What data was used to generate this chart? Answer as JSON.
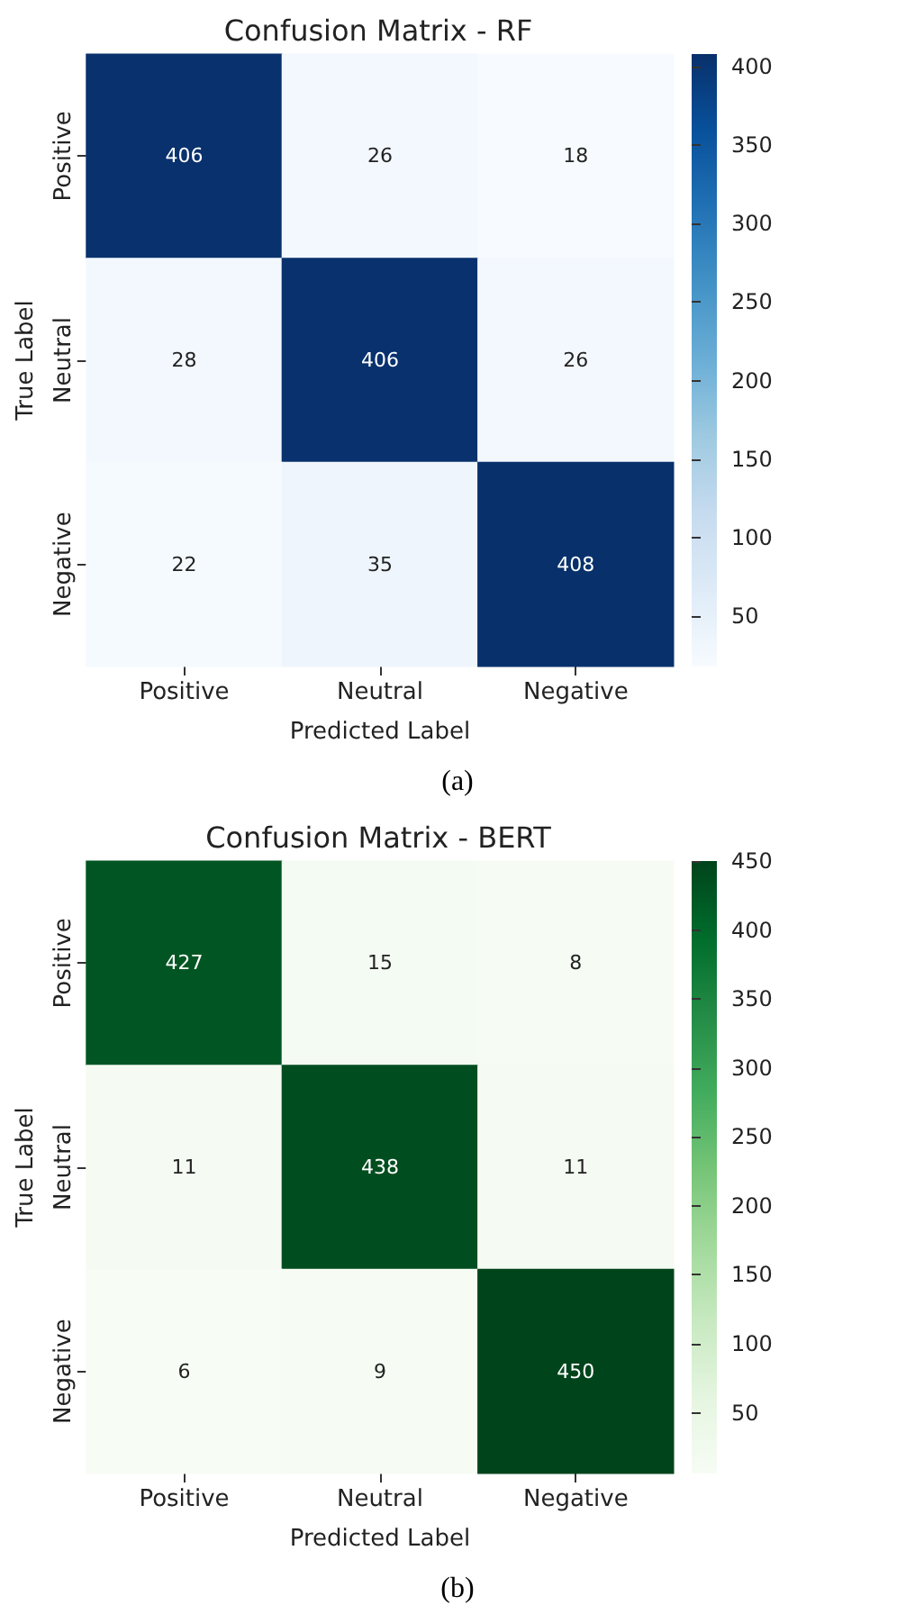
{
  "chart_data": [
    {
      "type": "heatmap",
      "title": "Confusion Matrix - RF",
      "xlabel": "Predicted Label",
      "ylabel": "True Label",
      "categories": [
        "Positive",
        "Neutral",
        "Negative"
      ],
      "y_categories": [
        "Positive",
        "Neutral",
        "Negative"
      ],
      "cells": [
        [
          406,
          26,
          18
        ],
        [
          28,
          406,
          26
        ],
        [
          22,
          35,
          408
        ]
      ],
      "data_labels": true,
      "clim": [
        18,
        408
      ],
      "cticks": [
        50,
        100,
        150,
        200,
        250,
        300,
        350,
        400
      ],
      "annotations": [
        "(a)"
      ]
    },
    {
      "type": "heatmap",
      "title": "Confusion Matrix - BERT",
      "xlabel": "Predicted Label",
      "ylabel": "True Label",
      "categories": [
        "Positive",
        "Neutral",
        "Negative"
      ],
      "y_categories": [
        "Positive",
        "Neutral",
        "Negative"
      ],
      "cells": [
        [
          427,
          15,
          8
        ],
        [
          11,
          438,
          11
        ],
        [
          6,
          9,
          450
        ]
      ],
      "data_labels": true,
      "clim": [
        6,
        450
      ],
      "cticks": [
        50,
        100,
        150,
        200,
        250,
        300,
        350,
        400,
        450
      ],
      "annotations": [
        "(b)"
      ]
    }
  ]
}
